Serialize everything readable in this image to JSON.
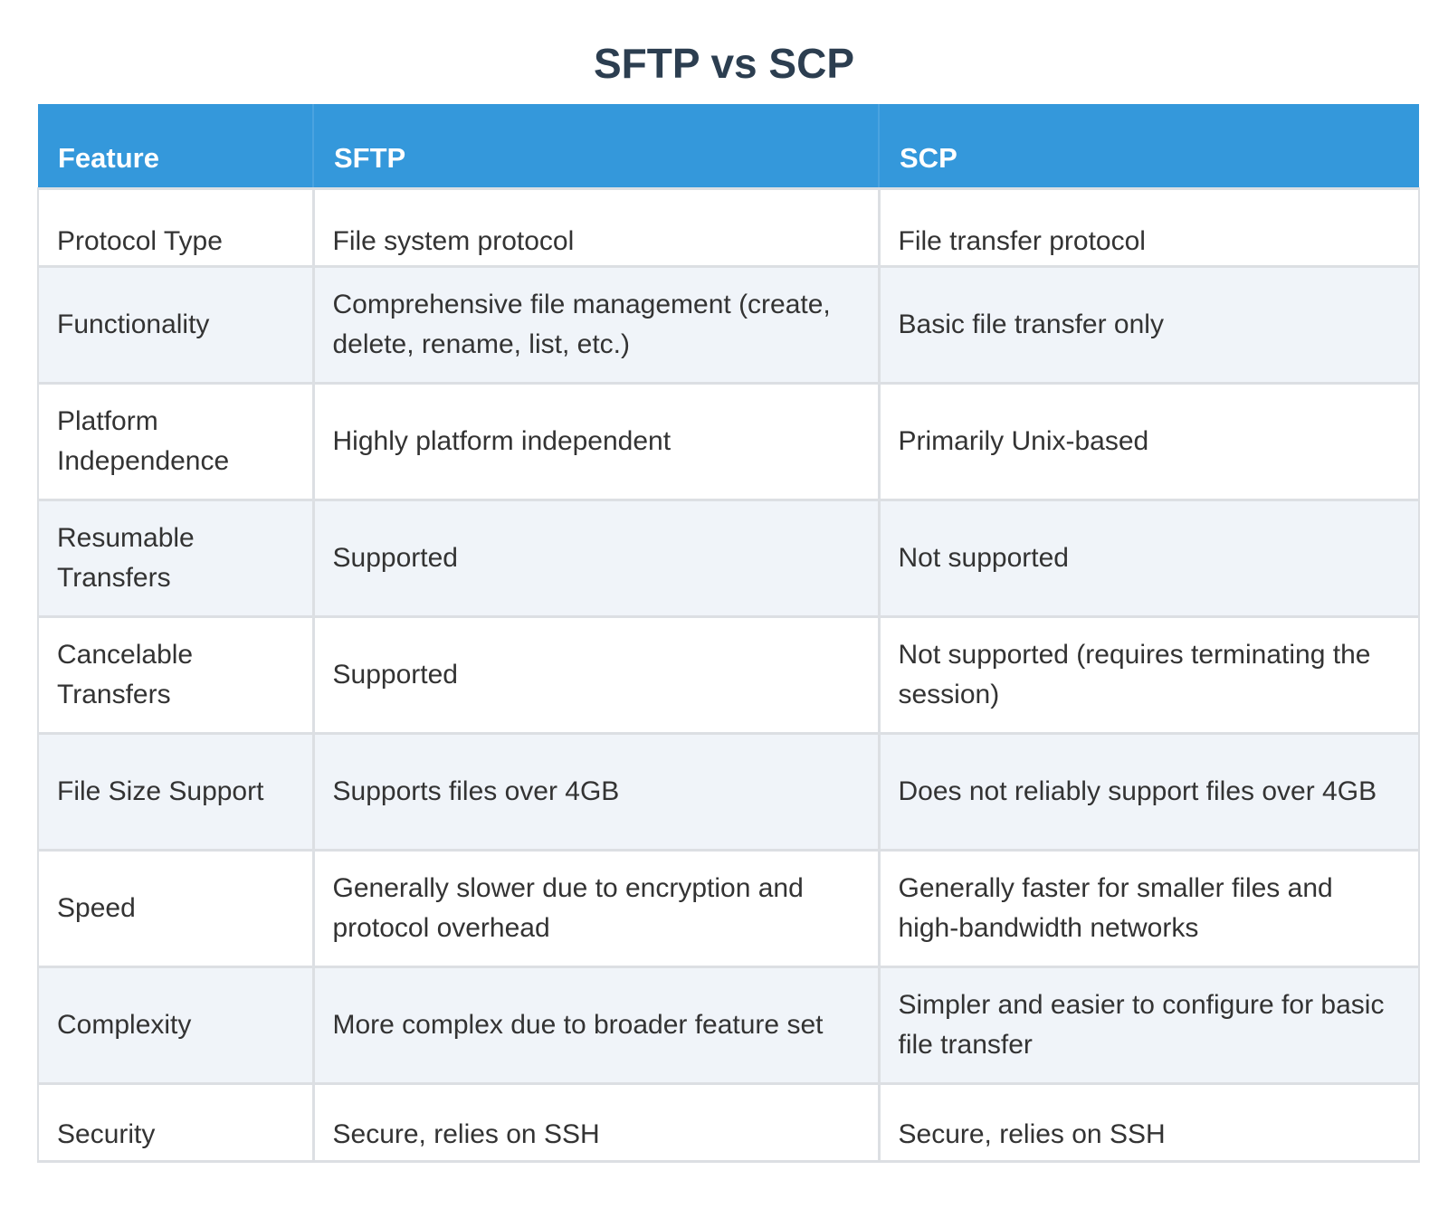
{
  "page": {
    "title": "SFTP vs SCP"
  },
  "table": {
    "headers": [
      "Feature",
      "SFTP",
      "SCP"
    ],
    "rows": [
      [
        "Protocol Type",
        "File system protocol",
        "File transfer protocol"
      ],
      [
        "Functionality",
        "Comprehensive file management (create, delete, rename, list, etc.)",
        "Basic file transfer only"
      ],
      [
        "Platform Independence",
        "Highly platform independent",
        "Primarily Unix-based"
      ],
      [
        "Resumable Transfers",
        "Supported",
        "Not supported"
      ],
      [
        "Cancelable Transfers",
        "Supported",
        "Not supported (requires terminating the session)"
      ],
      [
        "File Size Support",
        "Supports files over 4GB",
        "Does not reliably support files over 4GB"
      ],
      [
        "Speed",
        "Generally slower due to encryption and protocol overhead",
        "Generally faster for smaller files and high-bandwidth networks"
      ],
      [
        "Complexity",
        "More complex due to broader feature set",
        "Simpler and easier to configure for basic file transfer"
      ],
      [
        "Security",
        "Secure, relies on SSH",
        "Secure, relies on SSH"
      ]
    ]
  },
  "colors": {
    "header_background": "#3498db",
    "header_text": "#ffffff",
    "title_text": "#2c3e50",
    "alt_row_background": "#f0f4f9",
    "row_background": "#ffffff",
    "border": "#dcdfe3"
  }
}
